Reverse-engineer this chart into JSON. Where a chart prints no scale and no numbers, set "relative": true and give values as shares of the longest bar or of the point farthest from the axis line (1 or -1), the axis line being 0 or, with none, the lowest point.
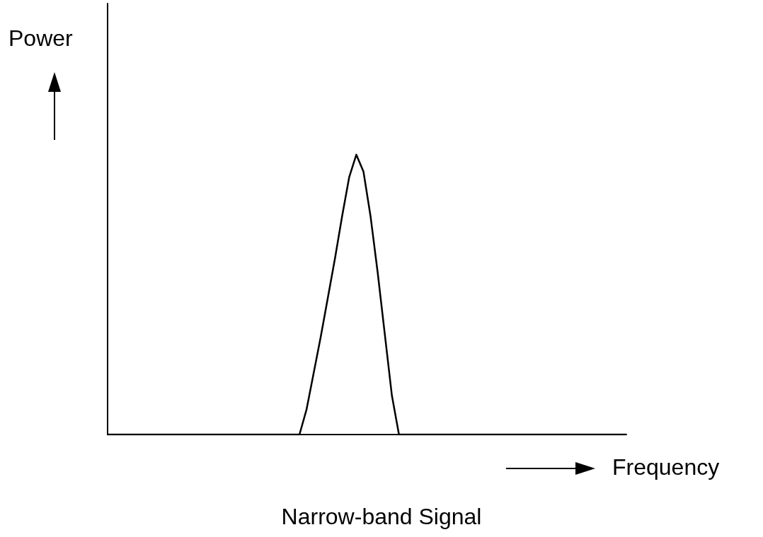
{
  "chart_data": {
    "type": "line",
    "title": "Narrow-band Signal",
    "xlabel": "Frequency",
    "ylabel": "Power",
    "relative": true,
    "color": "#000000",
    "marker": "none",
    "grid": false,
    "categories": [
      null,
      null,
      null,
      null,
      null,
      null,
      null,
      null,
      null,
      null,
      null,
      null,
      null,
      null,
      null,
      null,
      null,
      null,
      null,
      null,
      null,
      null,
      null,
      null,
      null,
      null,
      null,
      null,
      null,
      null,
      null,
      null,
      null,
      null,
      null,
      null,
      null,
      null,
      null,
      null,
      null,
      null,
      null,
      null,
      null,
      null,
      null,
      null,
      null,
      null,
      null,
      null,
      null,
      null,
      null,
      null,
      null,
      null,
      null,
      null,
      null,
      null,
      null,
      null,
      null,
      null,
      null,
      null,
      null,
      null,
      null,
      null,
      null,
      null
    ],
    "values": [
      0,
      0,
      0,
      0,
      0,
      0,
      0,
      0,
      0,
      0,
      0,
      0,
      0,
      0,
      0,
      0,
      0,
      0,
      0,
      0,
      0,
      0,
      0,
      0,
      0,
      0,
      0,
      0,
      0.09,
      0.22,
      0.35,
      0.49,
      0.63,
      0.78,
      0.92,
      1,
      0.94,
      0.78,
      0.58,
      0.36,
      0.14,
      0,
      0,
      0,
      0,
      0,
      0,
      0,
      0,
      0,
      0,
      0,
      0,
      0,
      0,
      0,
      0,
      0,
      0,
      0,
      0,
      0,
      0,
      0,
      0,
      0,
      0,
      0,
      0,
      0,
      0,
      0,
      0,
      0
    ]
  }
}
